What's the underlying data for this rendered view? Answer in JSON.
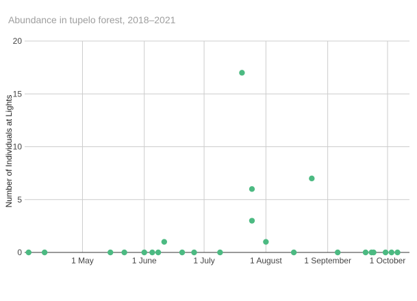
{
  "chart_data": {
    "type": "scatter",
    "title": "Abundance in tupelo forest, 2018–2021",
    "ylabel": "Number of Individuals at Lights",
    "xlabel": "",
    "ylim": [
      0,
      20
    ],
    "yticks": [
      0,
      5,
      10,
      15,
      20
    ],
    "xlim": [
      "2021-04-02",
      "2021-10-12"
    ],
    "xticks": [
      {
        "date": "2021-05-01",
        "label": "1 May"
      },
      {
        "date": "2021-06-01",
        "label": "1 June"
      },
      {
        "date": "2021-07-01",
        "label": "1 July"
      },
      {
        "date": "2021-08-01",
        "label": "1 August"
      },
      {
        "date": "2021-09-01",
        "label": "1 September"
      },
      {
        "date": "2021-10-01",
        "label": "1 October"
      }
    ],
    "grid": true,
    "color": "#4cba82",
    "series": [
      {
        "points": [
          {
            "x": "2021-04-04",
            "y": 0
          },
          {
            "x": "2021-04-12",
            "y": 0
          },
          {
            "x": "2021-05-15",
            "y": 0
          },
          {
            "x": "2021-05-22",
            "y": 0
          },
          {
            "x": "2021-06-01",
            "y": 0
          },
          {
            "x": "2021-06-05",
            "y": 0
          },
          {
            "x": "2021-06-08",
            "y": 0
          },
          {
            "x": "2021-06-11",
            "y": 1
          },
          {
            "x": "2021-06-20",
            "y": 0
          },
          {
            "x": "2021-06-26",
            "y": 0
          },
          {
            "x": "2021-07-09",
            "y": 0
          },
          {
            "x": "2021-07-20",
            "y": 17
          },
          {
            "x": "2021-07-25",
            "y": 6
          },
          {
            "x": "2021-07-25",
            "y": 3
          },
          {
            "x": "2021-08-01",
            "y": 1
          },
          {
            "x": "2021-08-15",
            "y": 0
          },
          {
            "x": "2021-08-24",
            "y": 7
          },
          {
            "x": "2021-09-06",
            "y": 0
          },
          {
            "x": "2021-09-20",
            "y": 0
          },
          {
            "x": "2021-09-23",
            "y": 0
          },
          {
            "x": "2021-09-24",
            "y": 0
          },
          {
            "x": "2021-09-30",
            "y": 0
          },
          {
            "x": "2021-10-03",
            "y": 0
          },
          {
            "x": "2021-10-06",
            "y": 0
          }
        ]
      }
    ]
  }
}
